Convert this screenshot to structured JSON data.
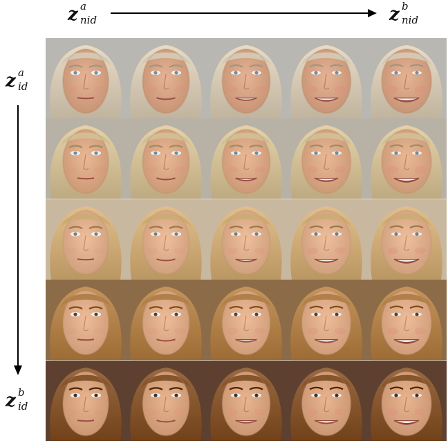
{
  "labels": {
    "top_left": {
      "base": "z",
      "sup": "a",
      "sub": "nid"
    },
    "top_right": {
      "base": "z",
      "sup": "b",
      "sub": "nid"
    },
    "left_top": {
      "base": "z",
      "sup": "a",
      "sub": "id"
    },
    "left_bottom": {
      "base": "z",
      "sup": "b",
      "sub": "id"
    }
  },
  "grid": {
    "rows": 5,
    "cols": 5,
    "rows_data": [
      {
        "identity": "older-man-gray-hair",
        "hair": "#d9cdb8",
        "skin": "#e6b394",
        "bg": "#b9b7b2",
        "eyes": "#6f8fb0"
      },
      {
        "identity": "middle-aged-blond",
        "hair": "#d7c39a",
        "skin": "#eab894",
        "bg": "#b8b2a6",
        "eyes": "#6b8aa6"
      },
      {
        "identity": "young-woman-blonde",
        "hair": "#d3b07b",
        "skin": "#efbf9d",
        "bg": "#c9b8a0",
        "eyes": "#6e7f86"
      },
      {
        "identity": "young-woman-light-brown",
        "hair": "#b6854e",
        "skin": "#eebc98",
        "bg": "#8c6c48",
        "eyes": "#4e4238"
      },
      {
        "identity": "young-woman-brown",
        "hair": "#8a5a32",
        "skin": "#e9b591",
        "bg": "#5e4030",
        "eyes": "#3e3028"
      }
    ],
    "smile_levels": [
      0.0,
      0.25,
      0.55,
      0.8,
      1.0
    ]
  }
}
